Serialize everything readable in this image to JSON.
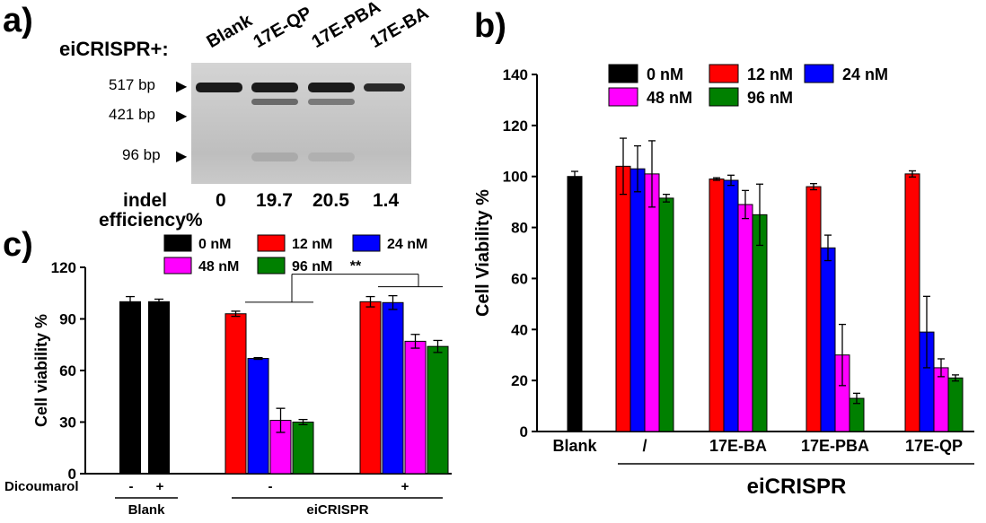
{
  "panels": {
    "a": {
      "label": "a)",
      "construct_label": "eiCRISPR+:",
      "lanes": [
        "Blank",
        "17E-QP",
        "17E-PBA",
        "17E-BA"
      ],
      "band_markers": [
        "517 bp",
        "421 bp",
        "96 bp"
      ],
      "efficiency_label_line1": "indel",
      "efficiency_label_line2": "efficiency%",
      "efficiency_values": [
        "0",
        "19.7",
        "20.5",
        "1.4"
      ]
    },
    "b": {
      "label": "b)"
    },
    "c": {
      "label": "c)"
    }
  },
  "chart_data": [
    {
      "id": "b",
      "type": "bar",
      "ylabel": "Cell Viability %",
      "xlabel": "eiCRISPR",
      "ylim": [
        0,
        140
      ],
      "yticks": [
        0,
        20,
        40,
        60,
        80,
        100,
        120,
        140
      ],
      "legend_placement": "top",
      "groups": [
        "Blank",
        "/",
        "17E-BA",
        "17E-PBA",
        "17E-QP"
      ],
      "series": [
        {
          "name": "0 nM",
          "color": "#000000",
          "values": [
            100,
            null,
            null,
            null,
            null
          ],
          "errors": [
            2,
            null,
            null,
            null,
            null
          ]
        },
        {
          "name": "12 nM",
          "color": "#ff0000",
          "values": [
            null,
            104,
            99,
            96,
            101
          ],
          "errors": [
            null,
            11,
            0.5,
            1.2,
            1.2
          ]
        },
        {
          "name": "24 nM",
          "color": "#0000ff",
          "values": [
            null,
            103,
            98.5,
            72,
            39
          ],
          "errors": [
            null,
            9,
            2,
            5,
            14
          ]
        },
        {
          "name": "48 nM",
          "color": "#ff00ff",
          "values": [
            null,
            101,
            89,
            30,
            25
          ],
          "errors": [
            null,
            13,
            5.5,
            12,
            3.5
          ]
        },
        {
          "name": "96 nM",
          "color": "#008000",
          "values": [
            null,
            91.5,
            85,
            13,
            21
          ],
          "errors": [
            null,
            1.5,
            12,
            2,
            1.2
          ]
        }
      ]
    },
    {
      "id": "c",
      "type": "bar",
      "ylabel": "Cell viability %",
      "ylim": [
        0,
        120
      ],
      "yticks": [
        0,
        30,
        60,
        90,
        120
      ],
      "legend_placement": "top",
      "row_label": "Dicoumarol",
      "significance": "**",
      "groups": [
        {
          "label": "-",
          "parent": "Blank"
        },
        {
          "label": "+",
          "parent": "Blank"
        },
        {
          "label": "-",
          "parent": "eiCRISPR"
        },
        {
          "label": "+",
          "parent": "eiCRISPR"
        }
      ],
      "parents": [
        "Blank",
        "eiCRISPR"
      ],
      "series": [
        {
          "name": "0 nM",
          "color": "#000000",
          "values": [
            100,
            100,
            null,
            null
          ],
          "errors": [
            3,
            1.5,
            null,
            null
          ]
        },
        {
          "name": "12 nM",
          "color": "#ff0000",
          "values": [
            null,
            null,
            93,
            100
          ],
          "errors": [
            null,
            null,
            1.5,
            3
          ]
        },
        {
          "name": "24 nM",
          "color": "#0000ff",
          "values": [
            null,
            null,
            67,
            99.5
          ],
          "errors": [
            null,
            null,
            0.5,
            4
          ]
        },
        {
          "name": "48 nM",
          "color": "#ff00ff",
          "values": [
            null,
            null,
            31,
            77
          ],
          "errors": [
            null,
            null,
            7,
            4
          ]
        },
        {
          "name": "96 nM",
          "color": "#008000",
          "values": [
            null,
            null,
            30,
            74
          ],
          "errors": [
            null,
            null,
            1.5,
            3.5
          ]
        }
      ]
    }
  ]
}
